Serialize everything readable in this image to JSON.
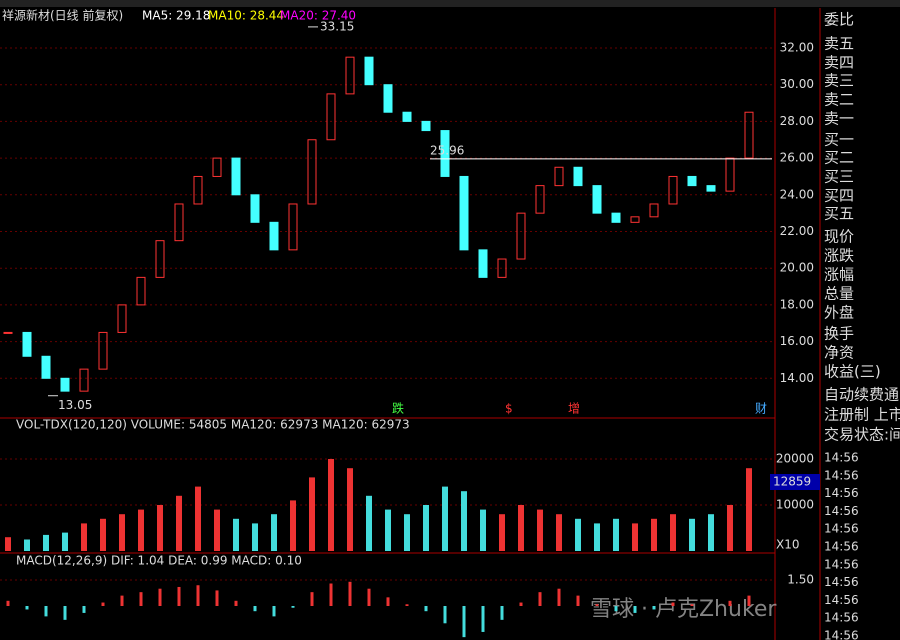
{
  "header": {
    "stock": "祥源新材(日线 前复权)",
    "ma5": "MA5: 29.18",
    "ma10": "MA10: 28.44",
    "ma20": "MA20: 27.40"
  },
  "price_panel": {
    "ticks": [
      {
        "value": 32,
        "label": "32.00"
      },
      {
        "value": 30,
        "label": "30.00"
      },
      {
        "value": 28,
        "label": "28.00"
      },
      {
        "value": 26,
        "label": "26.00"
      },
      {
        "value": 24,
        "label": "24.00"
      },
      {
        "value": 22,
        "label": "22.00"
      },
      {
        "value": 20,
        "label": "20.00"
      },
      {
        "value": 18,
        "label": "18.00"
      },
      {
        "value": 16,
        "label": "16.00"
      },
      {
        "value": 14,
        "label": "14.00"
      }
    ],
    "closes": [
      16.5,
      15.2,
      14.0,
      13.3,
      14.5,
      16.5,
      18.0,
      19.5,
      21.5,
      23.5,
      25.0,
      26.0,
      24.0,
      22.5,
      21.0,
      23.5,
      27.0,
      29.5,
      31.5,
      30.0,
      28.5,
      28.0,
      27.5,
      25.0,
      21.0,
      19.5,
      20.5,
      23.0,
      24.5,
      25.5,
      24.5,
      23.0,
      22.5,
      22.8,
      23.5,
      25.0,
      24.5,
      24.2,
      26.0,
      28.5
    ],
    "high_label": "33.15",
    "high": 33.15,
    "low_label": "13.05",
    "low": 13.05,
    "line_label": "25.96",
    "line": 25.96,
    "events": [
      "跌",
      "$",
      "增",
      "财"
    ]
  },
  "volume_panel": {
    "title": "VOL-TDX(120,120) VOLUME: 54805 MA120: 62973 MA120: 62973",
    "ticks": [
      20000,
      10000
    ],
    "values": [
      3000,
      2500,
      3500,
      4000,
      6000,
      7000,
      8000,
      9000,
      10000,
      12000,
      14000,
      9000,
      7000,
      6000,
      8000,
      11000,
      16000,
      20000,
      18000,
      12000,
      9000,
      8000,
      10000,
      14000,
      13000,
      9000,
      8000,
      10000,
      9000,
      8000,
      7000,
      6000,
      7000,
      6000,
      7000,
      8000,
      7000,
      8000,
      10000,
      18000
    ],
    "box": "12859",
    "scale": "X10"
  },
  "macd_panel": {
    "title": "MACD(12,26,9) DIF: 1.04 DEA: 0.99 MACD: 0.10",
    "ticks": [
      {
        "value": 1.5,
        "label": "1.50"
      }
    ],
    "values": [
      0.3,
      -0.2,
      -0.6,
      -0.8,
      -0.4,
      0.2,
      0.6,
      0.8,
      1.0,
      1.1,
      1.2,
      0.9,
      0.3,
      -0.3,
      -0.6,
      -0.1,
      0.8,
      1.3,
      1.4,
      1.0,
      0.5,
      0.1,
      -0.3,
      -1.0,
      -1.8,
      -1.5,
      -0.8,
      0.2,
      0.8,
      1.0,
      0.6,
      0.1,
      -0.3,
      -0.4,
      -0.2,
      0.2,
      0.1,
      0.0,
      0.3,
      0.6
    ]
  },
  "side_panel": {
    "labels": [
      "委比",
      "卖五",
      "卖四",
      "卖三",
      "卖二",
      "卖一",
      "买一",
      "买二",
      "买三",
      "买四",
      "买五",
      "现价",
      "涨跌",
      "涨幅",
      "总量",
      "外盘",
      "换手",
      "净资",
      "收益(三)",
      "自动续费通",
      "注册制 上市",
      "交易状态:间"
    ],
    "times": [
      "14:56",
      "14:56",
      "14:56",
      "14:56",
      "14:56",
      "14:56",
      "14:56",
      "14:56",
      "14:56",
      "14:56",
      "14:56"
    ]
  },
  "watermark": "雪球 · 卢克Zhuker"
}
